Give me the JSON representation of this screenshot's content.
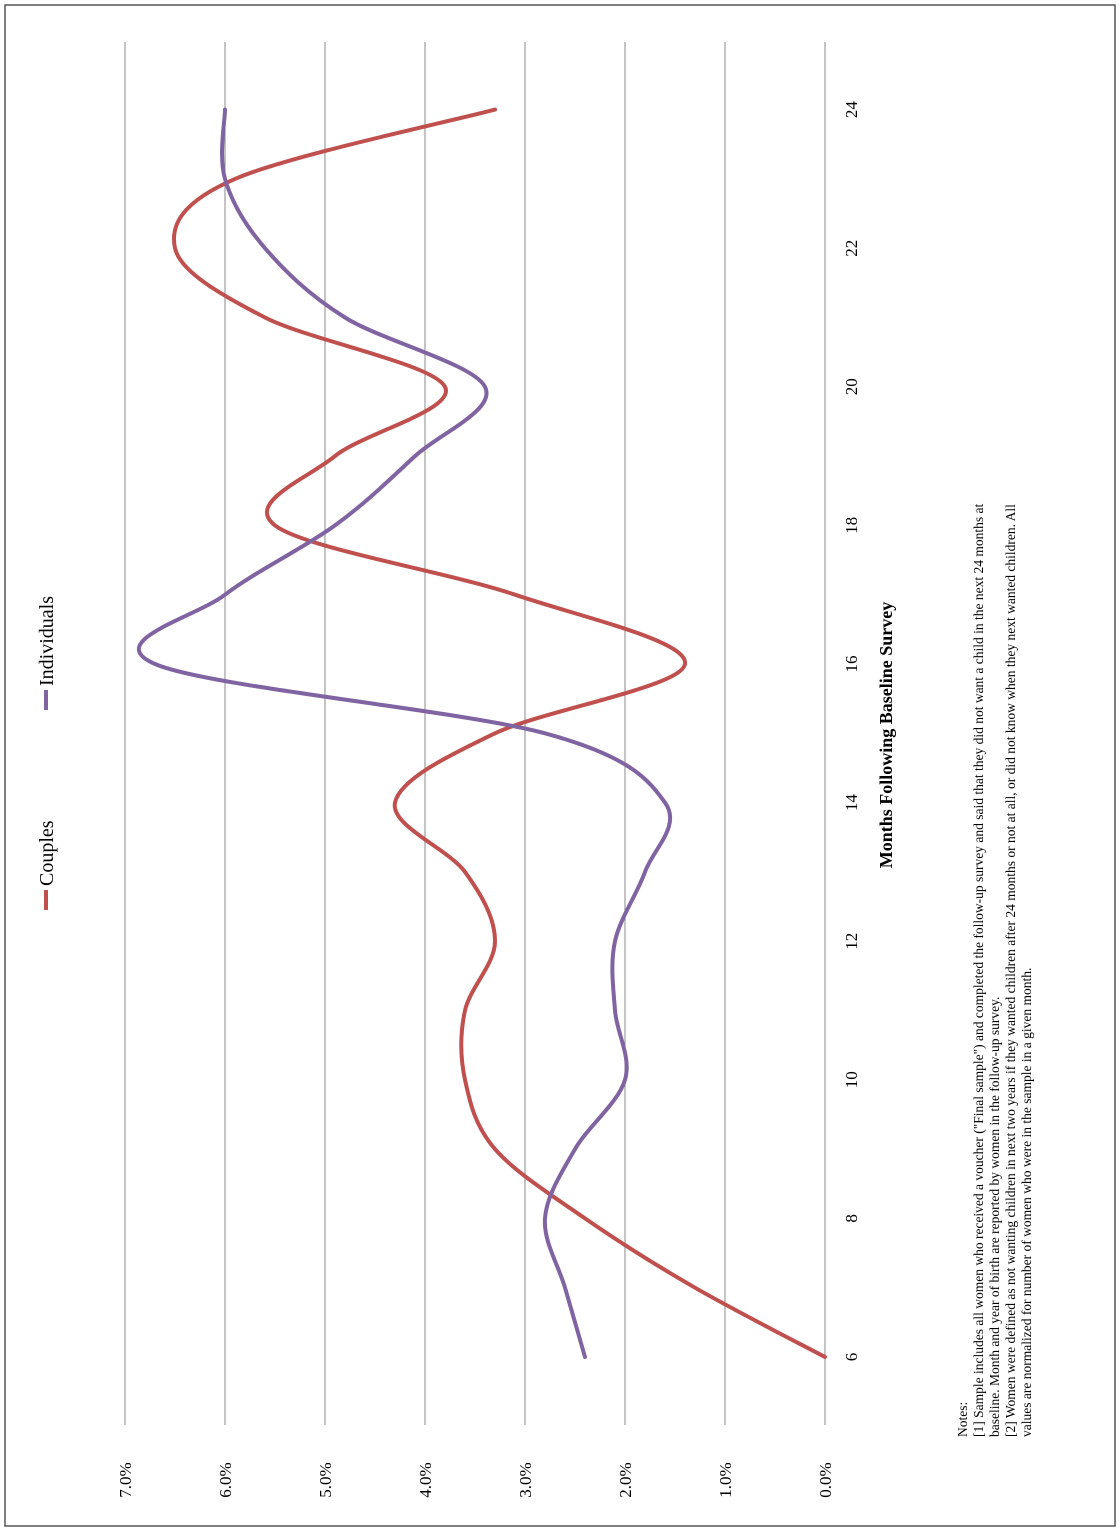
{
  "chart_data": {
    "type": "line",
    "xlabel": "Months Following Baseline Survey",
    "ylabel": "",
    "x": [
      6,
      7,
      8,
      9,
      10,
      11,
      12,
      13,
      14,
      15,
      16,
      17,
      18,
      19,
      20,
      21,
      22,
      23,
      24
    ],
    "x_ticks": [
      6,
      8,
      10,
      12,
      14,
      16,
      18,
      20,
      22,
      24
    ],
    "ylim": [
      0,
      7
    ],
    "y_ticks": [
      0,
      1,
      2,
      3,
      4,
      5,
      6,
      7
    ],
    "y_tick_labels": [
      "0.0%",
      "1.0%",
      "2.0%",
      "3.0%",
      "4.0%",
      "5.0%",
      "6.0%",
      "7.0%"
    ],
    "grid": true,
    "legend": "top",
    "series": [
      {
        "name": "Couples",
        "color": "#c0504d",
        "values": [
          0.0,
          1.3,
          2.4,
          3.3,
          3.6,
          3.6,
          3.3,
          3.6,
          4.3,
          3.3,
          1.4,
          3.1,
          5.5,
          4.9,
          3.8,
          5.6,
          6.5,
          5.9,
          3.3
        ]
      },
      {
        "name": "Individuals",
        "color": "#8064a2",
        "values": [
          2.4,
          2.6,
          2.8,
          2.5,
          2.0,
          2.1,
          2.1,
          1.8,
          1.6,
          2.8,
          6.7,
          6.0,
          4.9,
          4.1,
          3.4,
          4.8,
          5.6,
          6.0,
          6.0
        ]
      }
    ]
  },
  "notes": {
    "heading": "Notes:",
    "line1": "[1] Sample includes all women who received a voucher (\"Final sample\") and completed the follow-up survey and said that they did not want a child in the next 24 months at",
    "line2": "baseline.  Month and year of birth are reported by women in the follow-up survey.",
    "line3": "[2] Women were defined as not wanting children in next two years if they wanted children after 24 months or not at all, or did not know when they next wanted children.   All",
    "line4": "values are normalized for number of women who were in the sample in a given month."
  }
}
